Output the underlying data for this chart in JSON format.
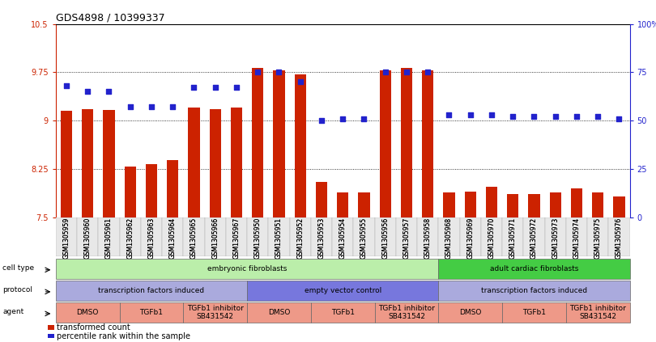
{
  "title": "GDS4898 / 10399337",
  "samples": [
    "GSM1305959",
    "GSM1305960",
    "GSM1305961",
    "GSM1305962",
    "GSM1305963",
    "GSM1305964",
    "GSM1305965",
    "GSM1305966",
    "GSM1305967",
    "GSM1305950",
    "GSM1305951",
    "GSM1305952",
    "GSM1305953",
    "GSM1305954",
    "GSM1305955",
    "GSM1305956",
    "GSM1305957",
    "GSM1305958",
    "GSM1305968",
    "GSM1305969",
    "GSM1305970",
    "GSM1305971",
    "GSM1305972",
    "GSM1305973",
    "GSM1305974",
    "GSM1305975",
    "GSM1305976"
  ],
  "bar_values": [
    9.15,
    9.18,
    9.16,
    8.28,
    8.32,
    8.38,
    9.2,
    9.18,
    9.2,
    9.82,
    9.78,
    9.72,
    8.05,
    7.88,
    7.88,
    9.78,
    9.82,
    9.78,
    7.88,
    7.9,
    7.97,
    7.86,
    7.86,
    7.88,
    7.95,
    7.88,
    7.82
  ],
  "percentile_values": [
    68,
    65,
    65,
    57,
    57,
    57,
    67,
    67,
    67,
    75,
    75,
    70,
    50,
    51,
    51,
    75,
    75,
    75,
    53,
    53,
    53,
    52,
    52,
    52,
    52,
    52,
    51
  ],
  "ylim_left": [
    7.5,
    10.5
  ],
  "ylim_right": [
    0,
    100
  ],
  "yticks_left": [
    7.5,
    8.25,
    9.0,
    9.75,
    10.5
  ],
  "ytick_labels_left": [
    "7.5",
    "8.25",
    "9",
    "9.75",
    "10.5"
  ],
  "yticks_right": [
    0,
    25,
    50,
    75,
    100
  ],
  "ytick_labels_right": [
    "0",
    "25",
    "50",
    "75",
    "100%"
  ],
  "bar_color": "#cc2200",
  "dot_color": "#2222cc",
  "cell_type_groups": [
    {
      "label": "embryonic fibroblasts",
      "start": 0,
      "end": 18,
      "color": "#bbeeaa"
    },
    {
      "label": "adult cardiac fibroblasts",
      "start": 18,
      "end": 27,
      "color": "#44cc44"
    }
  ],
  "protocol_groups": [
    {
      "label": "transcription factors induced",
      "start": 0,
      "end": 9,
      "color": "#aaaadd"
    },
    {
      "label": "empty vector control",
      "start": 9,
      "end": 18,
      "color": "#7777dd"
    },
    {
      "label": "transcription factors induced",
      "start": 18,
      "end": 27,
      "color": "#aaaadd"
    }
  ],
  "agent_groups": [
    {
      "label": "DMSO",
      "start": 0,
      "end": 3,
      "color": "#ee9988"
    },
    {
      "label": "TGFb1",
      "start": 3,
      "end": 6,
      "color": "#ee9988"
    },
    {
      "label": "TGFb1 inhibitor\nSB431542",
      "start": 6,
      "end": 9,
      "color": "#ee9988"
    },
    {
      "label": "DMSO",
      "start": 9,
      "end": 12,
      "color": "#ee9988"
    },
    {
      "label": "TGFb1",
      "start": 12,
      "end": 15,
      "color": "#ee9988"
    },
    {
      "label": "TGFb1 inhibitor\nSB431542",
      "start": 15,
      "end": 18,
      "color": "#ee9988"
    },
    {
      "label": "DMSO",
      "start": 18,
      "end": 21,
      "color": "#ee9988"
    },
    {
      "label": "TGFb1",
      "start": 21,
      "end": 24,
      "color": "#ee9988"
    },
    {
      "label": "TGFb1 inhibitor\nSB431542",
      "start": 24,
      "end": 27,
      "color": "#ee9988"
    }
  ],
  "row_labels": [
    "cell type",
    "protocol",
    "agent"
  ],
  "legend_items": [
    {
      "label": "transformed count",
      "color": "#cc2200"
    },
    {
      "label": "percentile rank within the sample",
      "color": "#2222cc"
    }
  ],
  "bg_color": "#ffffff"
}
